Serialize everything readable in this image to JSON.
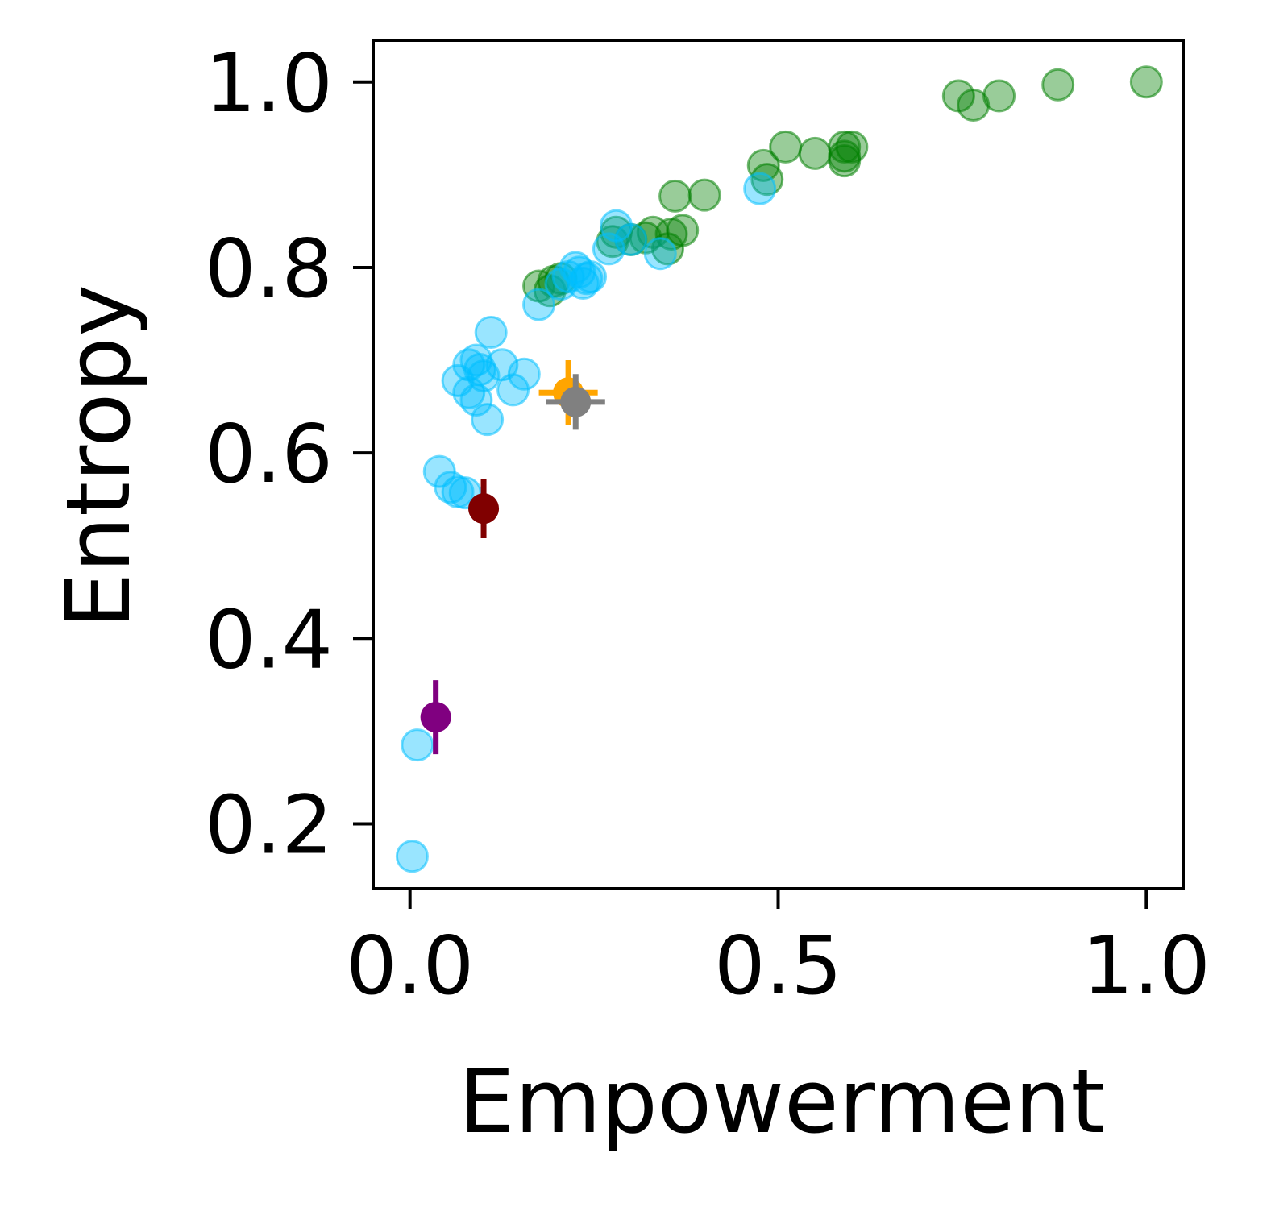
{
  "chart_data": {
    "type": "scatter",
    "xlabel": "Empowerment",
    "ylabel": "Entropy",
    "xlim": [
      -0.05,
      1.05
    ],
    "ylim": [
      0.13,
      1.045
    ],
    "x_ticks": [
      0.0,
      0.5,
      1.0
    ],
    "x_tick_labels": [
      "0.0",
      "0.5",
      "1.0"
    ],
    "y_ticks": [
      0.2,
      0.4,
      0.6,
      0.8,
      1.0
    ],
    "y_tick_labels": [
      "0.2",
      "0.4",
      "0.6",
      "0.8",
      "1.0"
    ],
    "grid": false,
    "legend": "none",
    "series": [
      {
        "color": "#008000",
        "marker": "circle",
        "alpha": 0.4,
        "points": [
          [
            1.0,
            1.0
          ],
          [
            0.88,
            0.997
          ],
          [
            0.8,
            0.985
          ],
          [
            0.765,
            0.975
          ],
          [
            0.745,
            0.985
          ],
          [
            0.6,
            0.93
          ],
          [
            0.59,
            0.92
          ],
          [
            0.59,
            0.93
          ],
          [
            0.59,
            0.915
          ],
          [
            0.55,
            0.923
          ],
          [
            0.51,
            0.93
          ],
          [
            0.48,
            0.91
          ],
          [
            0.485,
            0.895
          ],
          [
            0.4,
            0.878
          ],
          [
            0.36,
            0.877
          ],
          [
            0.37,
            0.84
          ],
          [
            0.355,
            0.836
          ],
          [
            0.33,
            0.838
          ],
          [
            0.32,
            0.832
          ],
          [
            0.3,
            0.83
          ],
          [
            0.28,
            0.838
          ],
          [
            0.275,
            0.828
          ],
          [
            0.35,
            0.82
          ],
          [
            0.205,
            0.788
          ],
          [
            0.195,
            0.785
          ],
          [
            0.19,
            0.775
          ],
          [
            0.175,
            0.78
          ]
        ]
      },
      {
        "color": "#00bfff",
        "marker": "circle",
        "alpha": 0.4,
        "points": [
          [
            0.475,
            0.885
          ],
          [
            0.28,
            0.845
          ],
          [
            0.27,
            0.82
          ],
          [
            0.34,
            0.815
          ],
          [
            0.3,
            0.83
          ],
          [
            0.225,
            0.8
          ],
          [
            0.215,
            0.79
          ],
          [
            0.245,
            0.79
          ],
          [
            0.24,
            0.788
          ],
          [
            0.23,
            0.795
          ],
          [
            0.235,
            0.783
          ],
          [
            0.205,
            0.782
          ],
          [
            0.175,
            0.76
          ],
          [
            0.11,
            0.73
          ],
          [
            0.095,
            0.69
          ],
          [
            0.09,
            0.7
          ],
          [
            0.08,
            0.695
          ],
          [
            0.1,
            0.683
          ],
          [
            0.125,
            0.695
          ],
          [
            0.155,
            0.685
          ],
          [
            0.14,
            0.668
          ],
          [
            0.065,
            0.678
          ],
          [
            0.08,
            0.665
          ],
          [
            0.09,
            0.657
          ],
          [
            0.105,
            0.636
          ],
          [
            0.04,
            0.58
          ],
          [
            0.055,
            0.563
          ],
          [
            0.065,
            0.558
          ],
          [
            0.075,
            0.557
          ],
          [
            0.01,
            0.285
          ],
          [
            0.003,
            0.165
          ]
        ]
      },
      {
        "color": "#ffa500",
        "marker": "filled-circle",
        "points": [
          [
            0.215,
            0.665
          ]
        ],
        "x_error": 0.04,
        "y_error": 0.035
      },
      {
        "color": "#808080",
        "marker": "filled-circle",
        "points": [
          [
            0.225,
            0.655
          ]
        ],
        "x_error": 0.04,
        "y_error": 0.03
      },
      {
        "color": "#800000",
        "marker": "filled-circle",
        "points": [
          [
            0.1,
            0.54
          ]
        ],
        "y_error": 0.032
      },
      {
        "color": "#800080",
        "marker": "filled-circle",
        "points": [
          [
            0.035,
            0.315
          ]
        ],
        "y_error": 0.04
      }
    ]
  }
}
